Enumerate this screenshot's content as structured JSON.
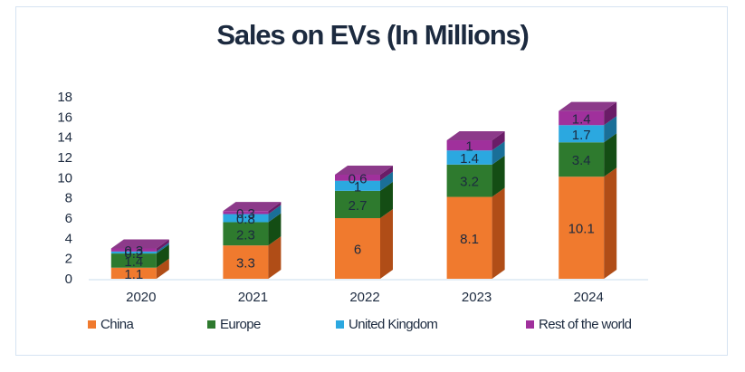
{
  "chart_data": {
    "type": "bar",
    "subtype": "stacked-3d",
    "title": "Sales on EVs (In Millions)",
    "xlabel": "",
    "ylabel": "",
    "categories": [
      "2020",
      "2021",
      "2022",
      "2023",
      "2024"
    ],
    "ylim": [
      0,
      18
    ],
    "yticks": [
      0,
      2,
      4,
      6,
      8,
      10,
      12,
      14,
      16,
      18
    ],
    "grid": false,
    "legend_position": "bottom",
    "series": [
      {
        "name": "China",
        "color": "#f07a2e",
        "side": "#b04d17",
        "top": "#f59a5c",
        "values": [
          1.1,
          3.3,
          6,
          8.1,
          10.1
        ]
      },
      {
        "name": "Europe",
        "color": "#2e7a2e",
        "side": "#144d14",
        "top": "#3f8f3f",
        "values": [
          1.4,
          2.3,
          2.7,
          3.2,
          3.4
        ]
      },
      {
        "name": "United Kingdom",
        "color": "#2ba8e0",
        "side": "#1a6f98",
        "top": "#5cc0ec",
        "values": [
          0.2,
          0.8,
          1,
          1.4,
          1.7
        ]
      },
      {
        "name": "Rest of the world",
        "color": "#a0309c",
        "side": "#6a1c67",
        "top": "#8c3a8a",
        "values": [
          0.3,
          0.3,
          0.6,
          1,
          1.4
        ]
      }
    ]
  }
}
